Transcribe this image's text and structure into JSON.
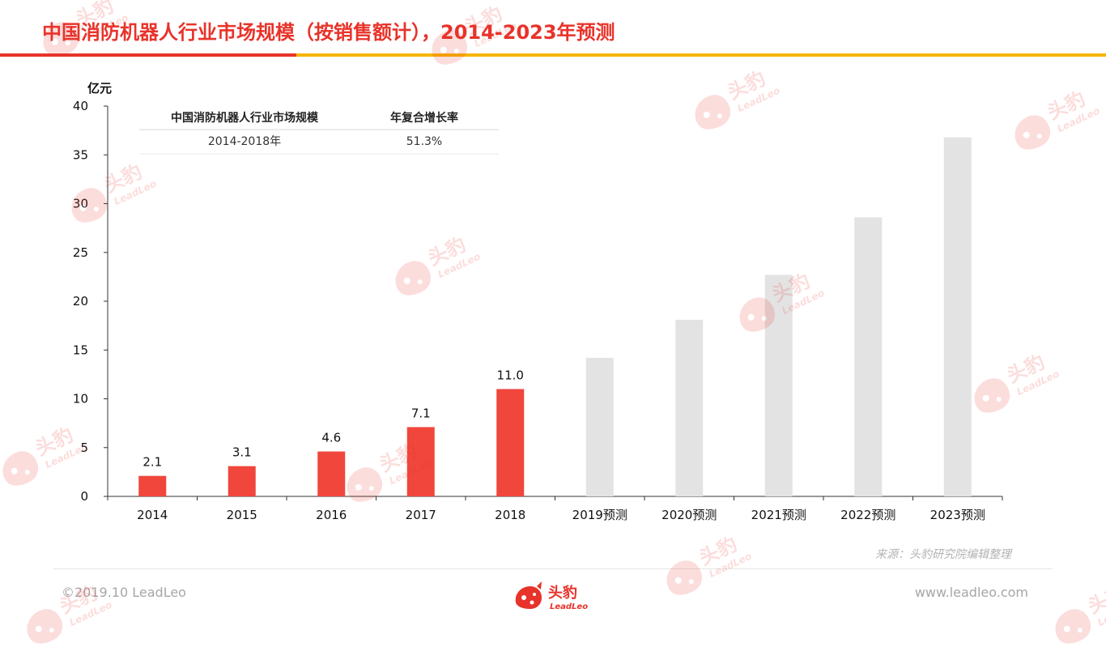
{
  "header": {
    "title": "中国消防机器人行业市场规模（按销售额计），2014-2023年预测"
  },
  "table": {
    "headers": [
      "中国消防机器人行业市场规模",
      "年复合增长率"
    ],
    "row": [
      "2014-2018年",
      "51.3%"
    ]
  },
  "chart_data": {
    "type": "bar",
    "ylabel": "亿元",
    "ylim": [
      0,
      40
    ],
    "yticks": [
      0,
      5,
      10,
      15,
      20,
      25,
      30,
      35,
      40
    ],
    "categories": [
      "2014",
      "2015",
      "2016",
      "2017",
      "2018",
      "2019预测",
      "2020预测",
      "2021预测",
      "2022预测",
      "2023预测"
    ],
    "values": [
      2.1,
      3.1,
      4.6,
      7.1,
      11.0,
      14.2,
      18.1,
      22.7,
      28.6,
      36.8
    ],
    "data_labels": [
      "2.1",
      "3.1",
      "4.6",
      "7.1",
      "11.0",
      "",
      "",
      "",
      "",
      ""
    ],
    "colors": [
      "#f0463c",
      "#f0463c",
      "#f0463c",
      "#f0463c",
      "#f0463c",
      "#e3e3e3",
      "#e3e3e3",
      "#e3e3e3",
      "#e3e3e3",
      "#e3e3e3"
    ],
    "grid": false
  },
  "footer": {
    "source": "来源：头豹研究院编辑整理",
    "copyright": "©2019.10 LeadLeo",
    "website": "www.leadleo.com",
    "logo_text": "头豹",
    "logo_sub": "LeadLeo"
  },
  "watermark": {
    "text": "头豹",
    "sub": "LeadLeo"
  }
}
